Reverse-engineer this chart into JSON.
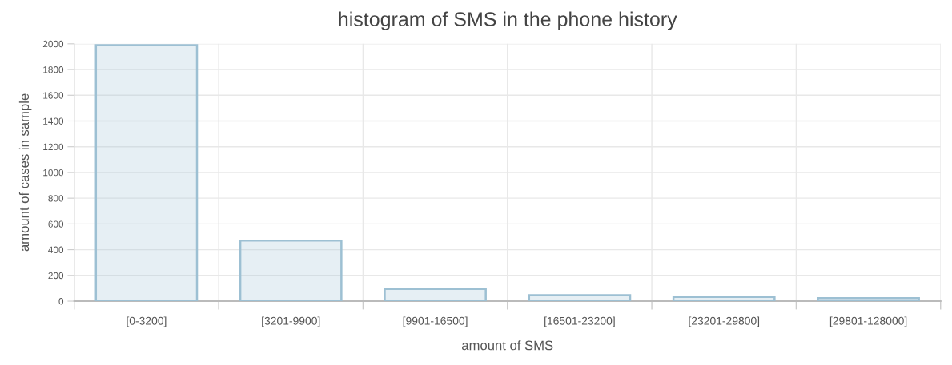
{
  "chart_data": {
    "type": "bar",
    "title": "histogram of SMS in the phone history",
    "xlabel": "amount of SMS",
    "ylabel": "amount of cases in sample",
    "categories": [
      "[0-3200]",
      "[3201-9900]",
      "[9901-16500]",
      "[16501-23200]",
      "[23201-29800]",
      "[29801-128000]"
    ],
    "values": [
      1990,
      470,
      95,
      46,
      32,
      24
    ],
    "color": "#9dc0d3",
    "ylim": [
      0,
      2000
    ],
    "yticks": [
      0,
      200,
      400,
      600,
      800,
      1000,
      1200,
      1400,
      1600,
      1800,
      2000
    ],
    "grid": true
  }
}
